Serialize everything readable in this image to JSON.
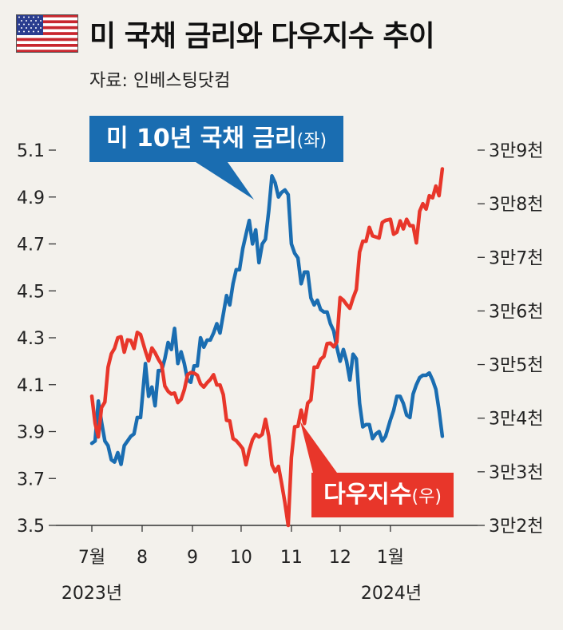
{
  "title": "미 국채 금리와 다우지수 추이",
  "source": "자료: 인베스팅닷컴",
  "labels": {
    "treasury_main": "미 10년 국채 금리",
    "treasury_side": "(좌)",
    "dow_main": "다우지수",
    "dow_side": "(우)"
  },
  "colors": {
    "treasury": "#1a6db1",
    "dow": "#e8362a",
    "axis": "#333333",
    "background": "#f3f1ec"
  },
  "chart_data": {
    "type": "line",
    "left_axis": {
      "ticks": [
        "5.1",
        "4.9",
        "4.7",
        "4.5",
        "4.3",
        "4.1",
        "3.9",
        "3.7",
        "3.5"
      ],
      "range": [
        3.5,
        5.1
      ]
    },
    "right_axis": {
      "ticks": [
        "3만9천",
        "3만8천",
        "3만7천",
        "3만6천",
        "3만5천",
        "3만4천",
        "3만3천",
        "3만2천"
      ],
      "range": [
        32000,
        39000
      ]
    },
    "x_ticks": [
      "7월",
      "8",
      "9",
      "10",
      "11",
      "12",
      "1월"
    ],
    "x_tick_dates": [
      "2023-07-01",
      "2023-08-01",
      "2023-09-01",
      "2023-10-01",
      "2023-11-01",
      "2023-12-01",
      "2024-01-01"
    ],
    "year_labels": [
      "2023년",
      "2024년"
    ],
    "x_range": [
      "2023-07-01",
      "2024-02-05"
    ],
    "series": [
      {
        "name": "미 10년 국채 금리",
        "axis": "left",
        "color": "#1a6db1",
        "points": [
          [
            "2023-07-01",
            3.85
          ],
          [
            "2023-07-03",
            3.86
          ],
          [
            "2023-07-05",
            4.03
          ],
          [
            "2023-07-07",
            3.94
          ],
          [
            "2023-07-09",
            3.86
          ],
          [
            "2023-07-11",
            3.84
          ],
          [
            "2023-07-13",
            3.78
          ],
          [
            "2023-07-15",
            3.77
          ],
          [
            "2023-07-17",
            3.81
          ],
          [
            "2023-07-19",
            3.76
          ],
          [
            "2023-07-21",
            3.84
          ],
          [
            "2023-07-23",
            3.86
          ],
          [
            "2023-07-25",
            3.88
          ],
          [
            "2023-07-27",
            3.89
          ],
          [
            "2023-07-29",
            3.96
          ],
          [
            "2023-07-31",
            3.96
          ],
          [
            "2023-08-03",
            4.19
          ],
          [
            "2023-08-05",
            4.05
          ],
          [
            "2023-08-07",
            4.09
          ],
          [
            "2023-08-09",
            4.01
          ],
          [
            "2023-08-11",
            4.16
          ],
          [
            "2023-08-13",
            4.16
          ],
          [
            "2023-08-15",
            4.21
          ],
          [
            "2023-08-17",
            4.28
          ],
          [
            "2023-08-19",
            4.25
          ],
          [
            "2023-08-21",
            4.34
          ],
          [
            "2023-08-23",
            4.19
          ],
          [
            "2023-08-25",
            4.24
          ],
          [
            "2023-08-27",
            4.19
          ],
          [
            "2023-08-29",
            4.12
          ],
          [
            "2023-08-31",
            4.11
          ],
          [
            "2023-09-02",
            4.18
          ],
          [
            "2023-09-04",
            4.18
          ],
          [
            "2023-09-06",
            4.3
          ],
          [
            "2023-09-08",
            4.26
          ],
          [
            "2023-09-10",
            4.29
          ],
          [
            "2023-09-12",
            4.29
          ],
          [
            "2023-09-14",
            4.32
          ],
          [
            "2023-09-16",
            4.36
          ],
          [
            "2023-09-18",
            4.32
          ],
          [
            "2023-09-20",
            4.4
          ],
          [
            "2023-09-22",
            4.48
          ],
          [
            "2023-09-24",
            4.44
          ],
          [
            "2023-09-26",
            4.53
          ],
          [
            "2023-09-28",
            4.59
          ],
          [
            "2023-09-30",
            4.59
          ],
          [
            "2023-10-02",
            4.68
          ],
          [
            "2023-10-04",
            4.74
          ],
          [
            "2023-10-06",
            4.8
          ],
          [
            "2023-10-08",
            4.7
          ],
          [
            "2023-10-10",
            4.76
          ],
          [
            "2023-10-12",
            4.62
          ],
          [
            "2023-10-14",
            4.7
          ],
          [
            "2023-10-16",
            4.72
          ],
          [
            "2023-10-18",
            4.84
          ],
          [
            "2023-10-20",
            4.99
          ],
          [
            "2023-10-22",
            4.96
          ],
          [
            "2023-10-24",
            4.9
          ],
          [
            "2023-10-26",
            4.92
          ],
          [
            "2023-10-28",
            4.93
          ],
          [
            "2023-10-30",
            4.91
          ],
          [
            "2023-11-01",
            4.7
          ],
          [
            "2023-11-03",
            4.66
          ],
          [
            "2023-11-05",
            4.64
          ],
          [
            "2023-11-07",
            4.53
          ],
          [
            "2023-11-09",
            4.58
          ],
          [
            "2023-11-11",
            4.58
          ],
          [
            "2023-11-13",
            4.47
          ],
          [
            "2023-11-15",
            4.44
          ],
          [
            "2023-11-17",
            4.46
          ],
          [
            "2023-11-19",
            4.42
          ],
          [
            "2023-11-21",
            4.41
          ],
          [
            "2023-11-23",
            4.41
          ],
          [
            "2023-11-25",
            4.36
          ],
          [
            "2023-11-27",
            4.33
          ],
          [
            "2023-11-29",
            4.26
          ],
          [
            "2023-12-01",
            4.2
          ],
          [
            "2023-12-03",
            4.25
          ],
          [
            "2023-12-05",
            4.2
          ],
          [
            "2023-12-07",
            4.12
          ],
          [
            "2023-12-09",
            4.23
          ],
          [
            "2023-12-11",
            4.21
          ],
          [
            "2023-12-13",
            4.02
          ],
          [
            "2023-12-15",
            3.92
          ],
          [
            "2023-12-17",
            3.93
          ],
          [
            "2023-12-19",
            3.93
          ],
          [
            "2023-12-21",
            3.87
          ],
          [
            "2023-12-23",
            3.89
          ],
          [
            "2023-12-25",
            3.9
          ],
          [
            "2023-12-27",
            3.86
          ],
          [
            "2023-12-29",
            3.88
          ],
          [
            "2024-01-01",
            3.95
          ],
          [
            "2024-01-03",
            3.99
          ],
          [
            "2024-01-05",
            4.05
          ],
          [
            "2024-01-07",
            4.05
          ],
          [
            "2024-01-09",
            4.02
          ],
          [
            "2024-01-11",
            3.97
          ],
          [
            "2024-01-13",
            3.96
          ],
          [
            "2024-01-15",
            4.06
          ],
          [
            "2024-01-17",
            4.1
          ],
          [
            "2024-01-19",
            4.13
          ],
          [
            "2024-01-21",
            4.14
          ],
          [
            "2024-01-23",
            4.14
          ],
          [
            "2024-01-25",
            4.15
          ],
          [
            "2024-01-27",
            4.12
          ],
          [
            "2024-01-29",
            4.08
          ],
          [
            "2024-01-31",
            3.99
          ],
          [
            "2024-02-02",
            3.88
          ]
        ]
      },
      {
        "name": "다우지수",
        "axis": "right",
        "color": "#e8362a",
        "points": [
          [
            "2023-07-01",
            34410
          ],
          [
            "2023-07-03",
            33900
          ],
          [
            "2023-07-05",
            33650
          ],
          [
            "2023-07-07",
            34200
          ],
          [
            "2023-07-09",
            34300
          ],
          [
            "2023-07-11",
            34950
          ],
          [
            "2023-07-13",
            35200
          ],
          [
            "2023-07-15",
            35300
          ],
          [
            "2023-07-17",
            35500
          ],
          [
            "2023-07-19",
            35520
          ],
          [
            "2023-07-21",
            35230
          ],
          [
            "2023-07-23",
            35460
          ],
          [
            "2023-07-25",
            35450
          ],
          [
            "2023-07-27",
            35300
          ],
          [
            "2023-07-29",
            35600
          ],
          [
            "2023-07-31",
            35560
          ],
          [
            "2023-08-03",
            35250
          ],
          [
            "2023-08-05",
            35070
          ],
          [
            "2023-08-07",
            35310
          ],
          [
            "2023-08-09",
            35220
          ],
          [
            "2023-08-11",
            35100
          ],
          [
            "2023-08-13",
            35000
          ],
          [
            "2023-08-15",
            34600
          ],
          [
            "2023-08-17",
            34500
          ],
          [
            "2023-08-19",
            34450
          ],
          [
            "2023-08-21",
            34470
          ],
          [
            "2023-08-23",
            34290
          ],
          [
            "2023-08-25",
            34350
          ],
          [
            "2023-08-27",
            34530
          ],
          [
            "2023-08-29",
            34810
          ],
          [
            "2023-08-31",
            34850
          ],
          [
            "2023-09-02",
            34840
          ],
          [
            "2023-09-04",
            34800
          ],
          [
            "2023-09-06",
            34640
          ],
          [
            "2023-09-08",
            34580
          ],
          [
            "2023-09-10",
            34660
          ],
          [
            "2023-09-12",
            34720
          ],
          [
            "2023-09-14",
            34810
          ],
          [
            "2023-09-16",
            34620
          ],
          [
            "2023-09-18",
            34620
          ],
          [
            "2023-09-20",
            34440
          ],
          [
            "2023-09-22",
            33960
          ],
          [
            "2023-09-24",
            33950
          ],
          [
            "2023-09-26",
            33620
          ],
          [
            "2023-09-28",
            33580
          ],
          [
            "2023-09-30",
            33510
          ],
          [
            "2023-10-02",
            33430
          ],
          [
            "2023-10-04",
            33130
          ],
          [
            "2023-10-06",
            33400
          ],
          [
            "2023-10-08",
            33600
          ],
          [
            "2023-10-10",
            33700
          ],
          [
            "2023-10-12",
            33650
          ],
          [
            "2023-10-14",
            33700
          ],
          [
            "2023-10-16",
            33980
          ],
          [
            "2023-10-18",
            33670
          ],
          [
            "2023-10-20",
            33130
          ],
          [
            "2023-10-22",
            33000
          ],
          [
            "2023-10-24",
            33100
          ],
          [
            "2023-10-26",
            32780
          ],
          [
            "2023-10-28",
            32420
          ],
          [
            "2023-10-30",
            32000
          ],
          [
            "2023-11-01",
            33270
          ],
          [
            "2023-11-03",
            33840
          ],
          [
            "2023-11-05",
            33850
          ],
          [
            "2023-11-07",
            34150
          ],
          [
            "2023-11-09",
            33900
          ],
          [
            "2023-11-11",
            34280
          ],
          [
            "2023-11-13",
            34340
          ],
          [
            "2023-11-15",
            34950
          ],
          [
            "2023-11-17",
            34950
          ],
          [
            "2023-11-19",
            35100
          ],
          [
            "2023-11-21",
            35150
          ],
          [
            "2023-11-23",
            35390
          ],
          [
            "2023-11-25",
            35400
          ],
          [
            "2023-11-27",
            35330
          ],
          [
            "2023-11-29",
            35420
          ],
          [
            "2023-12-01",
            36250
          ],
          [
            "2023-12-03",
            36200
          ],
          [
            "2023-12-05",
            36120
          ],
          [
            "2023-12-07",
            36050
          ],
          [
            "2023-12-09",
            36240
          ],
          [
            "2023-12-11",
            36400
          ],
          [
            "2023-12-13",
            37100
          ],
          [
            "2023-12-15",
            37300
          ],
          [
            "2023-12-17",
            37300
          ],
          [
            "2023-12-19",
            37560
          ],
          [
            "2023-12-21",
            37400
          ],
          [
            "2023-12-23",
            37380
          ],
          [
            "2023-12-25",
            37360
          ],
          [
            "2023-12-27",
            37650
          ],
          [
            "2023-12-29",
            37690
          ],
          [
            "2024-01-01",
            37710
          ],
          [
            "2024-01-03",
            37430
          ],
          [
            "2024-01-05",
            37470
          ],
          [
            "2024-01-07",
            37680
          ],
          [
            "2024-01-09",
            37530
          ],
          [
            "2024-01-11",
            37710
          ],
          [
            "2024-01-13",
            37590
          ],
          [
            "2024-01-15",
            37590
          ],
          [
            "2024-01-17",
            37270
          ],
          [
            "2024-01-19",
            37860
          ],
          [
            "2024-01-21",
            38000
          ],
          [
            "2024-01-23",
            37900
          ],
          [
            "2024-01-25",
            38150
          ],
          [
            "2024-01-27",
            38110
          ],
          [
            "2024-01-29",
            38330
          ],
          [
            "2024-01-31",
            38150
          ],
          [
            "2024-02-02",
            38650
          ]
        ]
      }
    ]
  }
}
